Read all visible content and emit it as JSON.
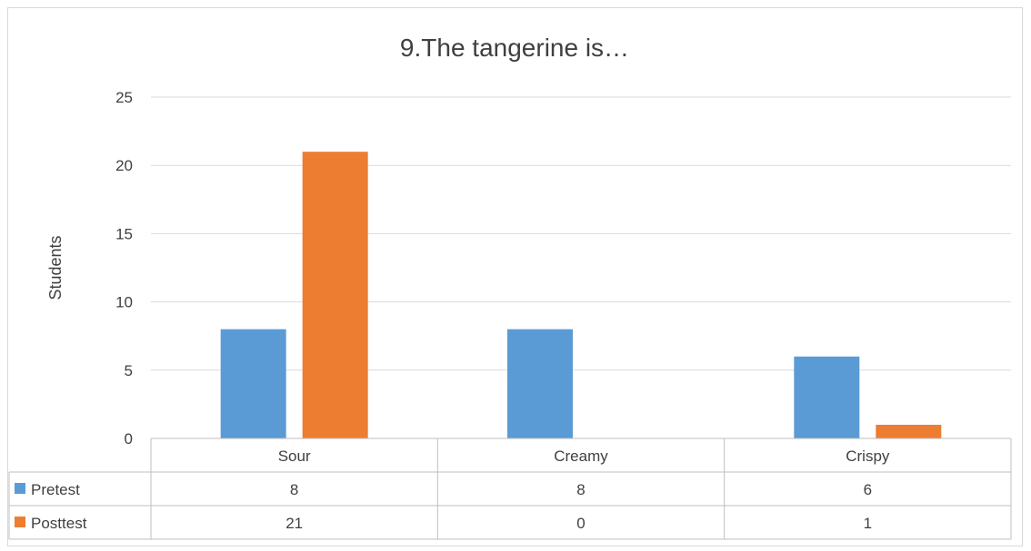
{
  "chart_data": {
    "type": "bar",
    "title": "9.The tangerine is…",
    "xlabel": "",
    "ylabel": "Students",
    "categories": [
      "Sour",
      "Creamy",
      "Crispy"
    ],
    "series": [
      {
        "name": "Pretest",
        "values": [
          8,
          8,
          6
        ],
        "color": "#5b9bd5"
      },
      {
        "name": "Posttest",
        "values": [
          21,
          0,
          1
        ],
        "color": "#ed7d31"
      }
    ],
    "ylim": [
      0,
      25
    ],
    "yticks": [
      0,
      5,
      10,
      15,
      20,
      25
    ],
    "grid": true,
    "legend": "data-table"
  }
}
